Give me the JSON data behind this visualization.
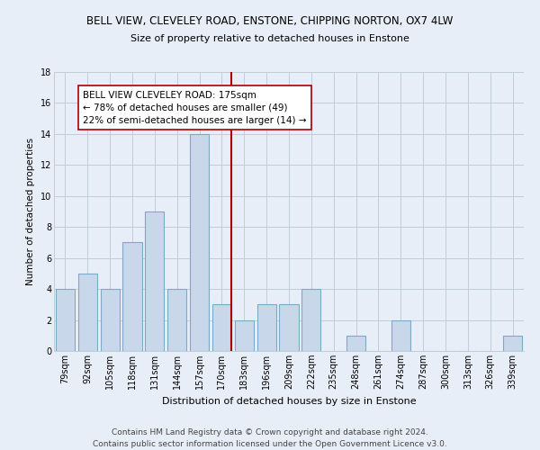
{
  "title": "BELL VIEW, CLEVELEY ROAD, ENSTONE, CHIPPING NORTON, OX7 4LW",
  "subtitle": "Size of property relative to detached houses in Enstone",
  "xlabel": "Distribution of detached houses by size in Enstone",
  "ylabel": "Number of detached properties",
  "bar_categories": [
    "79sqm",
    "92sqm",
    "105sqm",
    "118sqm",
    "131sqm",
    "144sqm",
    "157sqm",
    "170sqm",
    "183sqm",
    "196sqm",
    "209sqm",
    "222sqm",
    "235sqm",
    "248sqm",
    "261sqm",
    "274sqm",
    "287sqm",
    "300sqm",
    "313sqm",
    "326sqm",
    "339sqm"
  ],
  "bar_values": [
    4,
    5,
    4,
    7,
    9,
    4,
    14,
    3,
    2,
    3,
    3,
    4,
    0,
    1,
    0,
    2,
    0,
    0,
    0,
    0,
    1
  ],
  "bar_color": "#c8d8ea",
  "bar_edge_color": "#7aaac8",
  "property_line_color": "#aa0000",
  "annotation_text": "BELL VIEW CLEVELEY ROAD: 175sqm\n← 78% of detached houses are smaller (49)\n22% of semi-detached houses are larger (14) →",
  "annotation_box_color": "#ffffff",
  "annotation_border_color": "#aa0000",
  "ylim": [
    0,
    18
  ],
  "yticks": [
    0,
    2,
    4,
    6,
    8,
    10,
    12,
    14,
    16,
    18
  ],
  "background_color": "#e8eef8",
  "grid_color": "#c0ccd8",
  "footer_line1": "Contains HM Land Registry data © Crown copyright and database right 2024.",
  "footer_line2": "Contains public sector information licensed under the Open Government Licence v3.0.",
  "title_fontsize": 8.5,
  "subtitle_fontsize": 8.0,
  "xlabel_fontsize": 8.0,
  "ylabel_fontsize": 7.5,
  "tick_fontsize": 7.0,
  "annotation_fontsize": 7.5,
  "footer_fontsize": 6.5
}
